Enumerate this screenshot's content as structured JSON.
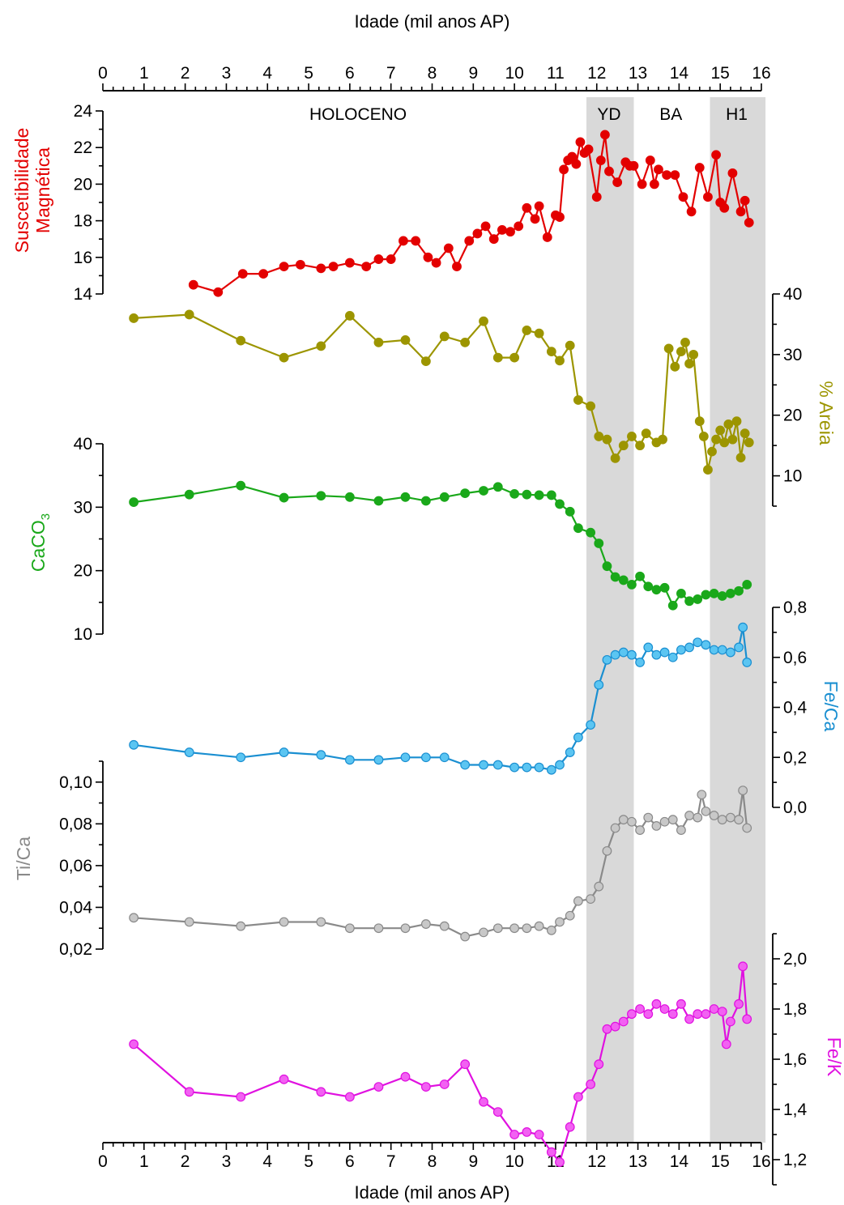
{
  "chart_data": {
    "type": "line",
    "x_axis": {
      "label": "Idade (mil anos AP)",
      "range": [
        0,
        16
      ],
      "ticks": [
        "0",
        "1",
        "2",
        "3",
        "4",
        "5",
        "6",
        "7",
        "8",
        "9",
        "10",
        "11",
        "12",
        "13",
        "14",
        "15",
        "16"
      ]
    },
    "shaded_intervals": [
      {
        "label": "YD",
        "x_range": [
          11.75,
          12.9
        ]
      },
      {
        "label": "H1",
        "x_range": [
          14.75,
          16.1
        ]
      }
    ],
    "period_labels": [
      {
        "label": "HOLOCENO",
        "x": 6.2
      },
      {
        "label": "YD",
        "x": 12.3
      },
      {
        "label": "BA",
        "x": 13.8
      },
      {
        "label": "H1",
        "x": 15.4
      }
    ],
    "series": [
      {
        "name": "Suscetibilidade Magnética",
        "label_lines": [
          "Suscetibilidade",
          "Magnética"
        ],
        "color": "#e30000",
        "axis_side": "left",
        "range": [
          14,
          24
        ],
        "ticks": [
          "14",
          "16",
          "18",
          "20",
          "22",
          "24"
        ],
        "x": [
          2.2,
          2.8,
          3.4,
          3.9,
          4.4,
          4.8,
          5.3,
          5.6,
          6.0,
          6.4,
          6.7,
          7.0,
          7.3,
          7.6,
          7.9,
          8.1,
          8.4,
          8.6,
          8.9,
          9.1,
          9.3,
          9.5,
          9.7,
          9.9,
          10.1,
          10.3,
          10.5,
          10.6,
          10.8,
          11.0,
          11.1,
          11.2,
          11.3,
          11.4,
          11.5,
          11.6,
          11.7,
          11.8,
          12.0,
          12.1,
          12.2,
          12.3,
          12.5,
          12.7,
          12.8,
          12.9,
          13.1,
          13.3,
          13.4,
          13.5,
          13.7,
          13.9,
          14.1,
          14.3,
          14.5,
          14.7,
          14.9,
          15.0,
          15.1,
          15.3,
          15.5,
          15.6,
          15.7
        ],
        "y": [
          14.5,
          14.1,
          15.1,
          15.1,
          15.5,
          15.6,
          15.4,
          15.5,
          15.7,
          15.5,
          15.9,
          15.9,
          16.9,
          16.9,
          16.0,
          15.7,
          16.5,
          15.5,
          16.9,
          17.3,
          17.7,
          17.0,
          17.5,
          17.4,
          17.7,
          18.7,
          18.1,
          18.8,
          17.1,
          18.3,
          18.2,
          20.8,
          21.3,
          21.5,
          21.1,
          22.3,
          21.7,
          21.9,
          19.3,
          21.3,
          22.7,
          20.7,
          20.1,
          21.2,
          21.0,
          21.0,
          20.0,
          21.3,
          20.0,
          20.8,
          20.5,
          20.5,
          19.3,
          18.5,
          20.9,
          19.3,
          21.6,
          19.0,
          18.7,
          20.6,
          18.5,
          19.1,
          17.9
        ]
      },
      {
        "name": "% Areia",
        "label_lines": [
          "% Areia"
        ],
        "color": "#9c9500",
        "axis_side": "right",
        "range": [
          5,
          40
        ],
        "ticks": [
          "10",
          "20",
          "30",
          "40"
        ],
        "x": [
          0.75,
          2.1,
          3.35,
          4.4,
          5.3,
          6.0,
          6.7,
          7.35,
          7.85,
          8.3,
          8.8,
          9.25,
          9.6,
          10.0,
          10.3,
          10.6,
          10.9,
          11.1,
          11.35,
          11.55,
          11.85,
          12.05,
          12.25,
          12.45,
          12.65,
          12.85,
          13.05,
          13.2,
          13.45,
          13.6,
          13.75,
          13.9,
          14.05,
          14.15,
          14.25,
          14.35,
          14.5,
          14.6,
          14.7,
          14.8,
          14.9,
          15.0,
          15.1,
          15.2,
          15.3,
          15.4,
          15.5,
          15.6,
          15.7
        ],
        "y": [
          36,
          36.6,
          32.3,
          29.5,
          31.4,
          36.4,
          32.0,
          32.4,
          28.9,
          33.0,
          32.0,
          35.5,
          29.5,
          29.5,
          34.0,
          33.5,
          30.5,
          29.0,
          31.5,
          22.5,
          21.5,
          16.5,
          16.0,
          12.9,
          15.0,
          16.5,
          15.0,
          17.0,
          15.5,
          16.0,
          31.0,
          28.0,
          30.5,
          32.0,
          28.5,
          30.0,
          19.0,
          16.5,
          11.0,
          14.0,
          16.0,
          17.5,
          15.5,
          18.5,
          16.0,
          19.0,
          13.0,
          17.0,
          15.5
        ]
      },
      {
        "name": "CaCO3",
        "label_lines": [
          "CaCO3"
        ],
        "color": "#1aa81a",
        "axis_side": "left",
        "range": [
          10,
          40
        ],
        "ticks": [
          "10",
          "20",
          "30",
          "40"
        ],
        "x": [
          0.75,
          2.1,
          3.35,
          4.4,
          5.3,
          6.0,
          6.7,
          7.35,
          7.85,
          8.3,
          8.8,
          9.25,
          9.6,
          10.0,
          10.3,
          10.6,
          10.9,
          11.1,
          11.35,
          11.55,
          11.85,
          12.05,
          12.25,
          12.45,
          12.65,
          12.85,
          13.05,
          13.25,
          13.45,
          13.65,
          13.85,
          14.05,
          14.25,
          14.45,
          14.65,
          14.85,
          15.05,
          15.25,
          15.45,
          15.65
        ],
        "y": [
          30.8,
          32.0,
          33.4,
          31.5,
          31.8,
          31.6,
          31.0,
          31.6,
          31.0,
          31.6,
          32.2,
          32.6,
          33.2,
          32.1,
          32.0,
          31.9,
          31.9,
          30.5,
          29.3,
          26.7,
          26.0,
          24.3,
          20.7,
          19.0,
          18.5,
          17.8,
          19.1,
          17.5,
          17.0,
          17.3,
          14.5,
          16.4,
          15.2,
          15.5,
          16.2,
          16.4,
          16.0,
          16.4,
          16.8,
          17.8
        ]
      },
      {
        "name": "Fe/Ca",
        "label_lines": [
          "Fe/Ca"
        ],
        "color": "#1a8fd1",
        "fill": "#5bc5f2",
        "axis_side": "right",
        "range": [
          0.0,
          0.8
        ],
        "ticks": [
          "0,0",
          "0,2",
          "0,4",
          "0,6",
          "0,8"
        ],
        "x": [
          0.75,
          2.1,
          3.35,
          4.4,
          5.3,
          6.0,
          6.7,
          7.35,
          7.85,
          8.3,
          8.8,
          9.25,
          9.6,
          10.0,
          10.3,
          10.6,
          10.9,
          11.1,
          11.35,
          11.55,
          11.85,
          12.05,
          12.25,
          12.45,
          12.65,
          12.85,
          13.05,
          13.25,
          13.45,
          13.65,
          13.85,
          14.05,
          14.25,
          14.45,
          14.65,
          14.85,
          15.05,
          15.25,
          15.45,
          15.55,
          15.65
        ],
        "y": [
          0.25,
          0.22,
          0.2,
          0.22,
          0.21,
          0.19,
          0.19,
          0.2,
          0.2,
          0.2,
          0.17,
          0.17,
          0.17,
          0.16,
          0.16,
          0.16,
          0.15,
          0.17,
          0.22,
          0.28,
          0.33,
          0.49,
          0.59,
          0.61,
          0.62,
          0.61,
          0.58,
          0.64,
          0.61,
          0.62,
          0.6,
          0.63,
          0.64,
          0.66,
          0.65,
          0.63,
          0.63,
          0.62,
          0.64,
          0.72,
          0.58
        ]
      },
      {
        "name": "Ti/Ca",
        "label_lines": [
          "Ti/Ca"
        ],
        "color": "#8a8a8a",
        "fill": "#c8c8c8",
        "axis_side": "left",
        "range": [
          0.02,
          0.11
        ],
        "ticks": [
          "0,02",
          "0,04",
          "0,06",
          "0,08",
          "0,10"
        ],
        "x": [
          0.75,
          2.1,
          3.35,
          4.4,
          5.3,
          6.0,
          6.7,
          7.35,
          7.85,
          8.3,
          8.8,
          9.25,
          9.6,
          10.0,
          10.3,
          10.6,
          10.9,
          11.1,
          11.35,
          11.55,
          11.85,
          12.05,
          12.25,
          12.45,
          12.65,
          12.85,
          13.05,
          13.25,
          13.45,
          13.65,
          13.85,
          14.05,
          14.25,
          14.45,
          14.55,
          14.65,
          14.85,
          15.05,
          15.25,
          15.45,
          15.55,
          15.65
        ],
        "y": [
          0.035,
          0.033,
          0.031,
          0.033,
          0.033,
          0.03,
          0.03,
          0.03,
          0.032,
          0.031,
          0.026,
          0.028,
          0.03,
          0.03,
          0.03,
          0.031,
          0.029,
          0.033,
          0.036,
          0.043,
          0.044,
          0.05,
          0.067,
          0.078,
          0.082,
          0.081,
          0.077,
          0.083,
          0.079,
          0.081,
          0.082,
          0.077,
          0.084,
          0.083,
          0.094,
          0.086,
          0.084,
          0.082,
          0.083,
          0.082,
          0.096,
          0.078
        ]
      },
      {
        "name": "Fe/K",
        "label_lines": [
          "Fe/K"
        ],
        "color": "#e011e0",
        "fill": "#f261f2",
        "axis_side": "right",
        "range": [
          1.1,
          2.1
        ],
        "ticks": [
          "1,2",
          "1,4",
          "1,6",
          "1,8",
          "2,0"
        ],
        "x": [
          0.75,
          2.1,
          3.35,
          4.4,
          5.3,
          6.0,
          6.7,
          7.35,
          7.85,
          8.3,
          8.8,
          9.25,
          9.6,
          10.0,
          10.3,
          10.6,
          10.9,
          11.1,
          11.35,
          11.55,
          11.85,
          12.05,
          12.25,
          12.45,
          12.65,
          12.85,
          13.05,
          13.25,
          13.45,
          13.65,
          13.85,
          14.05,
          14.25,
          14.45,
          14.65,
          14.85,
          15.05,
          15.15,
          15.25,
          15.45,
          15.55,
          15.65
        ],
        "y": [
          1.66,
          1.47,
          1.45,
          1.52,
          1.47,
          1.45,
          1.49,
          1.53,
          1.49,
          1.5,
          1.58,
          1.43,
          1.39,
          1.3,
          1.31,
          1.3,
          1.23,
          1.19,
          1.33,
          1.45,
          1.5,
          1.58,
          1.72,
          1.73,
          1.75,
          1.78,
          1.8,
          1.78,
          1.82,
          1.8,
          1.78,
          1.82,
          1.76,
          1.78,
          1.78,
          1.8,
          1.79,
          1.66,
          1.75,
          1.82,
          1.97,
          1.76
        ]
      }
    ]
  }
}
